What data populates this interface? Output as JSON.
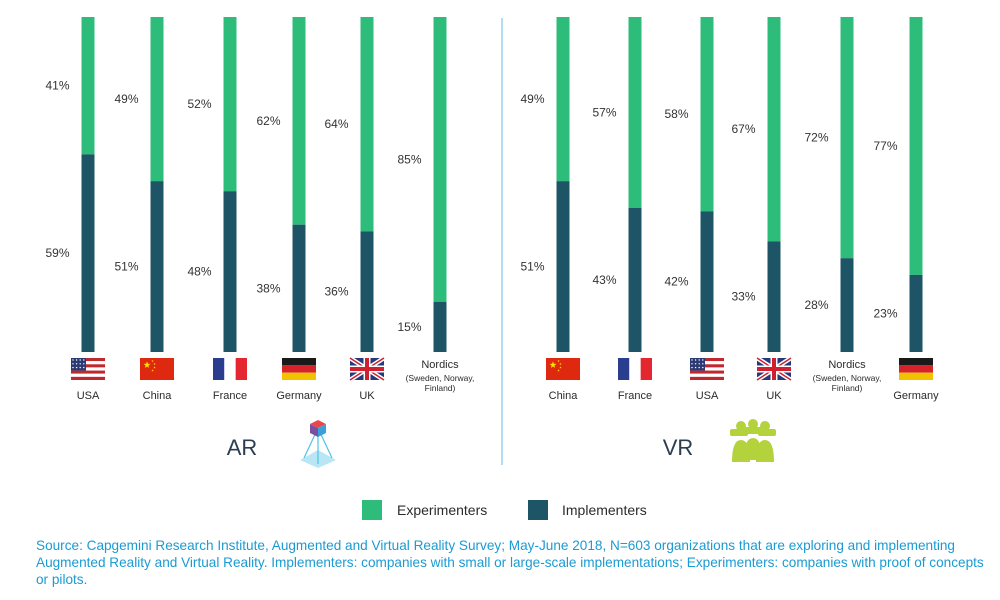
{
  "colors": {
    "experimenters": "#2dbc7a",
    "implementers": "#1d5566",
    "divider": "#7fc7e8",
    "source_text": "#1a9bd2",
    "vr_icon": "#b3d23c"
  },
  "chart_data": [
    {
      "type": "bar",
      "stacked": true,
      "title": "AR",
      "icon": "ar-prism-icon",
      "categories": [
        {
          "name": "USA",
          "sub": [],
          "flag": "usa-flag-icon"
        },
        {
          "name": "China",
          "sub": [],
          "flag": "china-flag-icon"
        },
        {
          "name": "France",
          "sub": [],
          "flag": "france-flag-icon"
        },
        {
          "name": "Germany",
          "sub": [],
          "flag": "germany-flag-icon"
        },
        {
          "name": "UK",
          "sub": [],
          "flag": "uk-flag-icon"
        },
        {
          "name": "Nordics",
          "sub": [
            "(Sweden, Norway,",
            "Finland)"
          ],
          "flag": ""
        }
      ],
      "series": [
        {
          "name": "Implementers",
          "values": [
            59,
            51,
            48,
            38,
            36,
            15
          ],
          "labels": [
            "59%",
            "51%",
            "48%",
            "38%",
            "36%",
            "15%"
          ]
        },
        {
          "name": "Experimenters",
          "values": [
            41,
            49,
            52,
            62,
            64,
            85
          ],
          "labels": [
            "41%",
            "49%",
            "52%",
            "62%",
            "64%",
            "85%"
          ]
        }
      ],
      "ylim": [
        0,
        100
      ]
    },
    {
      "type": "bar",
      "stacked": true,
      "title": "VR",
      "icon": "vr-headset-group-icon",
      "categories": [
        {
          "name": "China",
          "sub": [],
          "flag": "china-flag-icon"
        },
        {
          "name": "France",
          "sub": [],
          "flag": "france-flag-icon"
        },
        {
          "name": "USA",
          "sub": [],
          "flag": "usa-flag-icon"
        },
        {
          "name": "UK",
          "sub": [],
          "flag": "uk-flag-icon"
        },
        {
          "name": "Nordics",
          "sub": [
            "(Sweden, Norway,",
            "Finland)"
          ],
          "flag": ""
        },
        {
          "name": "Germany",
          "sub": [],
          "flag": "germany-flag-icon"
        }
      ],
      "series": [
        {
          "name": "Implementers",
          "values": [
            51,
            43,
            42,
            33,
            28,
            23
          ],
          "labels": [
            "51%",
            "43%",
            "42%",
            "33%",
            "28%",
            "23%"
          ]
        },
        {
          "name": "Experimenters",
          "values": [
            49,
            57,
            58,
            67,
            72,
            77
          ],
          "labels": [
            "49%",
            "57%",
            "58%",
            "67%",
            "72%",
            "77%"
          ]
        }
      ],
      "ylim": [
        0,
        100
      ]
    }
  ],
  "legend": [
    {
      "label": "Experimenters",
      "color": "#2dbc7a"
    },
    {
      "label": "Implementers",
      "color": "#1d5566"
    }
  ],
  "source": "Source: Capgemini Research Institute, Augmented and Virtual Reality Survey; May-June 2018, N=603 organizations that are exploring and implementing Augmented Reality and Virtual Reality. Implementers: companies with small or large-scale implementations; Experimenters: companies with proof of concepts or pilots."
}
